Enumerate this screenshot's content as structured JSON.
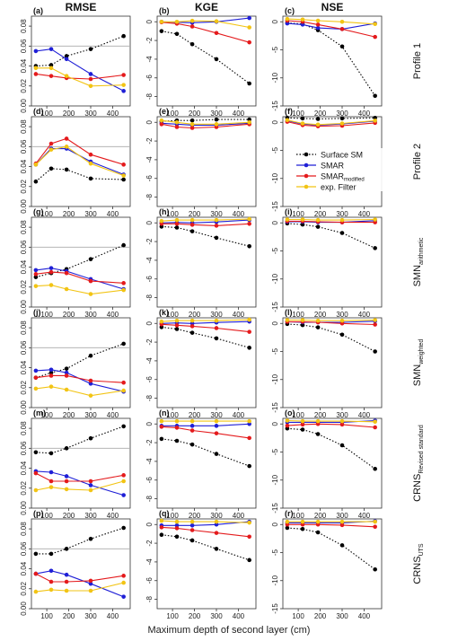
{
  "figure": {
    "column_titles": [
      "RMSE",
      "KGE",
      "NSE"
    ],
    "row_labels": [
      {
        "main": "Profile 1",
        "sub": ""
      },
      {
        "main": "Profile 2",
        "sub": ""
      },
      {
        "main": "SMN",
        "sub": "arithmetic"
      },
      {
        "main": "SMN",
        "sub": "weighted"
      },
      {
        "main": "CRNS",
        "sub": "Revised standard"
      },
      {
        "main": "CRNS",
        "sub": "UTS"
      }
    ],
    "panel_letters": [
      "(a)",
      "(b)",
      "(c)",
      "(d)",
      "(e)",
      "(f)",
      "(g)",
      "(h)",
      "(i)",
      "(j)",
      "(k)",
      "(l)",
      "(m)",
      "(n)",
      "(o)",
      "(p)",
      "(q)",
      "(r)"
    ],
    "xlabel": "Maximum depth of second layer (cm)",
    "legend": {
      "location": "panel (f), right",
      "entries": [
        {
          "label": "Surface SM",
          "sub": "",
          "series": "surface",
          "color": "#000000",
          "style": "dotted"
        },
        {
          "label": "SMAR",
          "sub": "",
          "series": "smar",
          "color": "#1f1fd6",
          "style": "solid"
        },
        {
          "label": "SMAR",
          "sub": "modified",
          "series": "smar_mod",
          "color": "#e41a1c",
          "style": "solid"
        },
        {
          "label": "exp. Filter",
          "sub": "",
          "series": "exp",
          "color": "#f2c414",
          "style": "solid"
        }
      ]
    }
  },
  "chart_data": {
    "type": "line",
    "x": [
      50,
      120,
      190,
      300,
      450
    ],
    "xlim": [
      30,
      480
    ],
    "xticks": [
      100,
      200,
      300,
      400
    ],
    "series_colors": {
      "surface": "#000000",
      "smar": "#1f1fd6",
      "smar_mod": "#e41a1c",
      "exp": "#f2c414"
    },
    "columns": [
      {
        "metric": "RMSE",
        "ylim": [
          0,
          0.09
        ],
        "yticks": [
          0.0,
          0.02,
          0.04,
          0.06,
          0.08
        ],
        "ytick_labels": [
          "0.00",
          "0.02",
          "0.04",
          "0.06",
          "0.08"
        ],
        "ref_line": 0.06
      },
      {
        "metric": "KGE",
        "ylim": [
          -9,
          0.6
        ],
        "yticks": [
          0,
          -2,
          -4,
          -6,
          -8
        ],
        "ytick_labels": [
          "0",
          "-2",
          "-4",
          "-6",
          "-8"
        ],
        "ref_line": null
      },
      {
        "metric": "NSE",
        "ylim": [
          -15,
          1
        ],
        "yticks": [
          0,
          -5,
          -10,
          -15
        ],
        "ytick_labels": [
          "0",
          "-5",
          "-10",
          "-15"
        ],
        "ref_line": null
      }
    ],
    "panels": [
      {
        "id": "a",
        "row": 0,
        "col": 0,
        "series": {
          "surface": [
            0.04,
            0.041,
            0.05,
            0.057,
            0.07
          ],
          "smar": [
            0.055,
            0.057,
            0.047,
            0.032,
            0.015
          ],
          "smar_mod": [
            0.032,
            0.03,
            0.028,
            0.027,
            0.031
          ],
          "exp": [
            0.038,
            0.038,
            0.03,
            0.02,
            0.021
          ]
        }
      },
      {
        "id": "b",
        "row": 0,
        "col": 1,
        "series": {
          "surface": [
            -1.0,
            -1.3,
            -2.4,
            -4.0,
            -6.6
          ],
          "smar": [
            0.0,
            -0.05,
            -0.1,
            0.0,
            0.4
          ],
          "smar_mod": [
            -0.05,
            -0.2,
            -0.5,
            -1.2,
            -2.2
          ],
          "exp": [
            0.0,
            0.0,
            0.1,
            0.05,
            -0.6
          ]
        }
      },
      {
        "id": "c",
        "row": 0,
        "col": 2,
        "series": {
          "surface": [
            -0.2,
            -0.4,
            -1.5,
            -4.4,
            -13.2
          ],
          "smar": [
            -0.3,
            -0.5,
            -1.1,
            -1.3,
            -0.3
          ],
          "smar_mod": [
            0.2,
            0.0,
            -0.5,
            -1.3,
            -2.7
          ],
          "exp": [
            0.5,
            0.4,
            0.2,
            0.0,
            -0.4
          ]
        }
      },
      {
        "id": "d",
        "row": 1,
        "col": 0,
        "series": {
          "surface": [
            0.025,
            0.038,
            0.037,
            0.028,
            0.027
          ],
          "smar": [
            0.042,
            0.058,
            0.058,
            0.045,
            0.032
          ],
          "smar_mod": [
            0.043,
            0.063,
            0.068,
            0.052,
            0.042
          ],
          "exp": [
            0.042,
            0.057,
            0.06,
            0.043,
            0.031
          ]
        }
      },
      {
        "id": "e",
        "row": 1,
        "col": 1,
        "series": {
          "surface": [
            0.1,
            0.2,
            0.2,
            0.3,
            0.3
          ],
          "smar": [
            -0.1,
            -0.2,
            -0.3,
            -0.3,
            -0.1
          ],
          "smar_mod": [
            -0.2,
            -0.5,
            -0.6,
            -0.5,
            -0.2
          ],
          "exp": [
            0.2,
            0.0,
            -0.2,
            -0.2,
            0.0
          ]
        }
      },
      {
        "id": "f",
        "row": 1,
        "col": 2,
        "series": {
          "surface": [
            0.8,
            0.7,
            0.6,
            0.7,
            0.8
          ],
          "smar": [
            0.3,
            -0.3,
            -0.5,
            -0.3,
            0.2
          ],
          "smar_mod": [
            0.1,
            -0.5,
            -0.7,
            -0.6,
            -0.1
          ],
          "exp": [
            0.4,
            -0.2,
            -0.4,
            -0.2,
            0.3
          ]
        }
      },
      {
        "id": "g",
        "row": 2,
        "col": 0,
        "series": {
          "surface": [
            0.03,
            0.034,
            0.038,
            0.048,
            0.062
          ],
          "smar": [
            0.037,
            0.039,
            0.036,
            0.028,
            0.018
          ],
          "smar_mod": [
            0.033,
            0.035,
            0.034,
            0.026,
            0.024
          ],
          "exp": [
            0.021,
            0.022,
            0.018,
            0.013,
            0.017
          ]
        }
      },
      {
        "id": "h",
        "row": 2,
        "col": 1,
        "series": {
          "surface": [
            -0.4,
            -0.5,
            -0.9,
            -1.6,
            -2.5
          ],
          "smar": [
            0.0,
            0.05,
            0.0,
            0.1,
            0.3
          ],
          "smar_mod": [
            -0.1,
            -0.1,
            -0.2,
            -0.3,
            -0.1
          ],
          "exp": [
            0.2,
            0.3,
            0.3,
            0.3,
            0.4
          ]
        }
      },
      {
        "id": "i",
        "row": 2,
        "col": 2,
        "series": {
          "surface": [
            -0.1,
            -0.3,
            -0.7,
            -1.8,
            -4.5
          ],
          "smar": [
            0.2,
            0.2,
            0.1,
            0.1,
            0.4
          ],
          "smar_mod": [
            0.3,
            0.3,
            0.2,
            0.1,
            0.1
          ],
          "exp": [
            0.6,
            0.6,
            0.5,
            0.5,
            0.6
          ]
        }
      },
      {
        "id": "j",
        "row": 3,
        "col": 0,
        "series": {
          "surface": [
            0.03,
            0.035,
            0.039,
            0.052,
            0.064
          ],
          "smar": [
            0.037,
            0.038,
            0.035,
            0.024,
            0.016
          ],
          "smar_mod": [
            0.03,
            0.032,
            0.032,
            0.027,
            0.025
          ],
          "exp": [
            0.019,
            0.021,
            0.018,
            0.012,
            0.017
          ]
        }
      },
      {
        "id": "k",
        "row": 3,
        "col": 1,
        "series": {
          "surface": [
            -0.4,
            -0.6,
            -1.0,
            -1.6,
            -2.6
          ],
          "smar": [
            0.0,
            0.05,
            0.0,
            0.1,
            0.2
          ],
          "smar_mod": [
            -0.1,
            -0.2,
            -0.3,
            -0.5,
            -0.9
          ],
          "exp": [
            0.2,
            0.3,
            0.3,
            0.3,
            0.4
          ]
        }
      },
      {
        "id": "l",
        "row": 3,
        "col": 2,
        "series": {
          "surface": [
            -0.1,
            -0.3,
            -0.7,
            -2.0,
            -5.0
          ],
          "smar": [
            0.3,
            0.2,
            0.2,
            0.2,
            0.4
          ],
          "smar_mod": [
            0.3,
            0.3,
            0.2,
            0.0,
            -0.2
          ],
          "exp": [
            0.6,
            0.6,
            0.5,
            0.5,
            0.6
          ]
        }
      },
      {
        "id": "m",
        "row": 4,
        "col": 0,
        "series": {
          "surface": [
            0.056,
            0.055,
            0.06,
            0.07,
            0.082
          ],
          "smar": [
            0.037,
            0.036,
            0.032,
            0.023,
            0.013
          ],
          "smar_mod": [
            0.035,
            0.027,
            0.027,
            0.027,
            0.033
          ],
          "exp": [
            0.018,
            0.021,
            0.019,
            0.018,
            0.027
          ]
        }
      },
      {
        "id": "n",
        "row": 4,
        "col": 1,
        "series": {
          "surface": [
            -1.6,
            -1.8,
            -2.2,
            -3.2,
            -4.5
          ],
          "smar": [
            -0.2,
            -0.2,
            -0.2,
            -0.2,
            0.0
          ],
          "smar_mod": [
            -0.3,
            -0.4,
            -0.7,
            -1.0,
            -1.5
          ],
          "exp": [
            0.3,
            0.3,
            0.3,
            0.3,
            0.3
          ]
        }
      },
      {
        "id": "o",
        "row": 4,
        "col": 2,
        "series": {
          "surface": [
            -0.8,
            -1.0,
            -1.8,
            -3.8,
            -8.0
          ],
          "smar": [
            0.3,
            0.3,
            0.3,
            0.3,
            0.6
          ],
          "smar_mod": [
            -0.3,
            -0.1,
            0.0,
            -0.1,
            -0.6
          ],
          "exp": [
            0.6,
            0.5,
            0.5,
            0.5,
            0.4
          ]
        }
      },
      {
        "id": "p",
        "row": 5,
        "col": 0,
        "series": {
          "surface": [
            0.055,
            0.055,
            0.06,
            0.07,
            0.081
          ],
          "smar": [
            0.035,
            0.038,
            0.034,
            0.025,
            0.012
          ],
          "smar_mod": [
            0.035,
            0.027,
            0.027,
            0.028,
            0.033
          ],
          "exp": [
            0.017,
            0.019,
            0.018,
            0.018,
            0.026
          ]
        }
      },
      {
        "id": "q",
        "row": 5,
        "col": 1,
        "series": {
          "surface": [
            -1.1,
            -1.3,
            -1.7,
            -2.6,
            -3.8
          ],
          "smar": [
            -0.1,
            -0.1,
            -0.1,
            0.0,
            0.3
          ],
          "smar_mod": [
            -0.3,
            -0.4,
            -0.6,
            -0.9,
            -1.3
          ],
          "exp": [
            0.4,
            0.3,
            0.3,
            0.3,
            0.2
          ]
        }
      },
      {
        "id": "r",
        "row": 5,
        "col": 2,
        "series": {
          "surface": [
            -0.6,
            -0.8,
            -1.4,
            -3.7,
            -8.0
          ],
          "smar": [
            0.3,
            0.3,
            0.3,
            0.3,
            0.6
          ],
          "smar_mod": [
            0.0,
            0.0,
            0.0,
            -0.1,
            -0.4
          ],
          "exp": [
            0.5,
            0.5,
            0.5,
            0.5,
            0.5
          ]
        }
      }
    ]
  }
}
